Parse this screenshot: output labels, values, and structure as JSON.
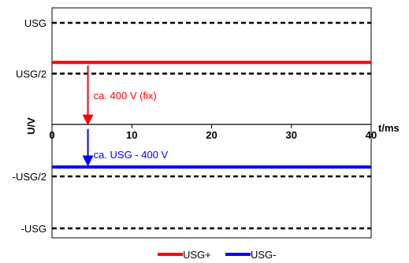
{
  "chart_data": {
    "type": "line",
    "xlabel": "t/ms",
    "ylabel": "U/V",
    "xlim": [
      0,
      40
    ],
    "ylim": [
      -1,
      1
    ],
    "x_ticks": [
      0,
      10,
      20,
      30,
      40
    ],
    "y_reference_lines": [
      {
        "label": "USG",
        "value": 1
      },
      {
        "label": "USG/2",
        "value": 0.5
      },
      {
        "label": "-USG/2",
        "value": -0.5
      },
      {
        "label": "-USG",
        "value": -1
      }
    ],
    "series": [
      {
        "name": "USG+",
        "color": "#ff0000",
        "x": [
          0,
          40
        ],
        "y": [
          0.61,
          0.61
        ]
      },
      {
        "name": "USG-",
        "color": "#0000ff",
        "x": [
          0,
          40
        ],
        "y": [
          -0.41,
          -0.41
        ]
      }
    ],
    "annotations": [
      {
        "text": "ca. 400 V (fix)",
        "color": "#ff0000",
        "x": 4.5,
        "from": 0.61,
        "to": 0
      },
      {
        "text": "ca. USG - 400 V",
        "color": "#0000ff",
        "x": 4.5,
        "from": 0,
        "to": -0.41
      }
    ],
    "legend": "bottom-center",
    "grid": false
  }
}
